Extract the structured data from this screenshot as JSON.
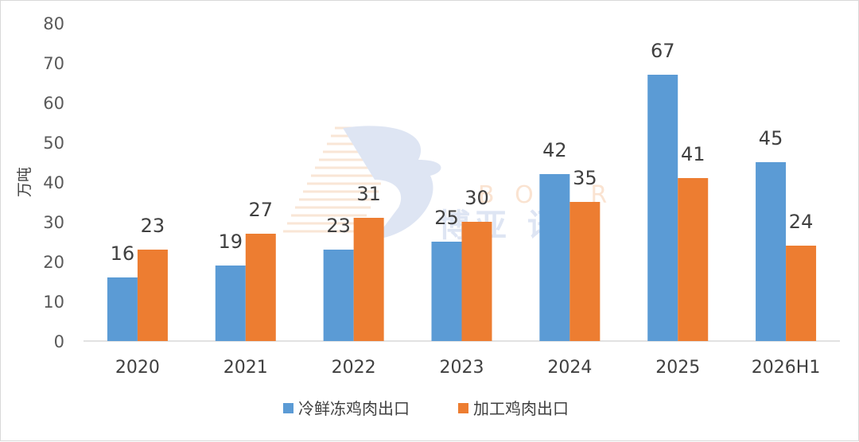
{
  "chart_data": {
    "type": "bar",
    "title": "",
    "xlabel": "",
    "ylabel": "万吨",
    "ylim": [
      0,
      80
    ],
    "yticks": [
      0,
      10,
      20,
      30,
      40,
      50,
      60,
      70,
      80
    ],
    "grid": false,
    "legend_position": "bottom",
    "categories": [
      "2020",
      "2021",
      "2022",
      "2023",
      "2024",
      "2025",
      "2026H1"
    ],
    "series": [
      {
        "name": "冷鲜冻鸡肉出口",
        "color": "#5b9bd5",
        "values": [
          16,
          19,
          23,
          25,
          42,
          67,
          45
        ]
      },
      {
        "name": "加工鸡肉出口",
        "color": "#ed7d31",
        "values": [
          23,
          27,
          31,
          30,
          35,
          41,
          24
        ]
      }
    ],
    "data_labels": true
  },
  "watermark": {
    "latin": "B O  A R",
    "chinese": "博亚 讯"
  }
}
